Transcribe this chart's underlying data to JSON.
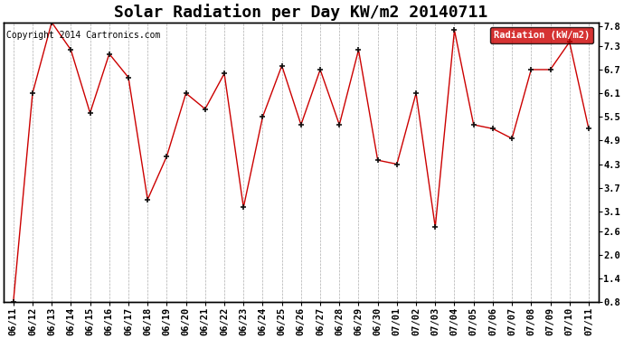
{
  "title": "Solar Radiation per Day KW/m2 20140711",
  "copyright": "Copyright 2014 Cartronics.com",
  "legend_label": "Radiation (kW/m2)",
  "x_labels": [
    "06/11",
    "06/12",
    "06/13",
    "06/14",
    "06/15",
    "06/16",
    "06/17",
    "06/18",
    "06/19",
    "06/20",
    "06/21",
    "06/22",
    "06/23",
    "06/24",
    "06/25",
    "06/26",
    "06/27",
    "06/28",
    "06/29",
    "06/30",
    "07/01",
    "07/02",
    "07/03",
    "07/04",
    "07/05",
    "07/06",
    "07/07",
    "07/08",
    "07/09",
    "07/10",
    "07/11"
  ],
  "y_values": [
    0.8,
    6.1,
    7.9,
    7.2,
    5.6,
    7.1,
    6.5,
    3.4,
    4.5,
    6.1,
    5.7,
    6.6,
    3.2,
    5.5,
    6.8,
    5.3,
    6.7,
    5.3,
    7.2,
    4.4,
    4.3,
    6.1,
    2.7,
    7.7,
    5.3,
    5.2,
    4.95,
    6.7,
    6.7,
    7.4,
    5.2
  ],
  "ylim_min": 0.8,
  "ylim_max": 7.9,
  "right_yticks": [
    0.8,
    1.4,
    2.0,
    2.6,
    3.1,
    3.7,
    4.3,
    4.9,
    5.5,
    6.1,
    6.7,
    7.3,
    7.8
  ],
  "right_ytick_labels": [
    "0.8",
    "1.4",
    "2.0",
    "2.6",
    "3.1",
    "3.7",
    "4.3",
    "4.9",
    "5.5",
    "6.1",
    "6.7",
    "7.3",
    "7.8"
  ],
  "line_color": "#cc0000",
  "marker_color": "#111111",
  "bg_color": "#ffffff",
  "grid_color": "#999999",
  "border_color": "#000000",
  "legend_bg": "#cc0000",
  "legend_text_color": "#ffffff",
  "title_fontsize": 13,
  "tick_fontsize": 7.5,
  "copyright_fontsize": 7
}
